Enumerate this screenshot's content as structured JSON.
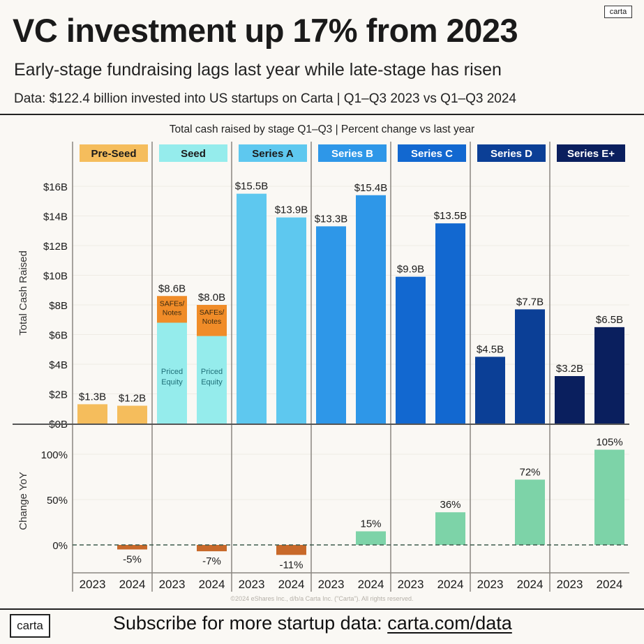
{
  "header": {
    "title": "VC investment up 17% from 2023",
    "subtitle": "Early-stage fundraising lags last year while late-stage has risen",
    "data_note": "Data: $122.4 billion invested into US startups on Carta | Q1–Q3 2023 vs Q1–Q3 2024",
    "corner_logo": "carta"
  },
  "footer": {
    "copyright": "©2024 eShares Inc., d/b/a Carta Inc. (\"Carta\"). All rights reserved.",
    "logo": "carta",
    "cta_text": "Subscribe for more startup data: ",
    "cta_link": "carta.com/data"
  },
  "chart_data": {
    "type": "bar",
    "title": "Total cash raised by stage Q1–Q3 | Percent change vs last year",
    "categories": [
      "Pre-Seed",
      "Seed",
      "Series A",
      "Series B",
      "Series C",
      "Series D",
      "Series E+"
    ],
    "years": [
      "2023",
      "2024"
    ],
    "stage_colors": [
      "#f5bd5c",
      "#95ecec",
      "#5ec8ef",
      "#2e97e8",
      "#1268d0",
      "#0b3f96",
      "#0a1f5e"
    ],
    "stage_label_text_colors": [
      "#1a1a1a",
      "#1a1a1a",
      "#1a1a1a",
      "#ffffff",
      "#ffffff",
      "#ffffff",
      "#ffffff"
    ],
    "panels": [
      {
        "name": "cash_raised",
        "ylabel": "Total Cash Raised",
        "unit": "$B",
        "ylim": [
          0,
          16
        ],
        "yticks": [
          0,
          2,
          4,
          6,
          8,
          10,
          12,
          14,
          16
        ],
        "ytick_labels": [
          "$0B",
          "$2B",
          "$4B",
          "$6B",
          "$8B",
          "$10B",
          "$12B",
          "$14B",
          "$16B"
        ],
        "grid": true,
        "series": [
          {
            "name": "2023",
            "values": [
              1.3,
              8.6,
              15.5,
              13.3,
              9.9,
              4.5,
              3.2
            ],
            "labels": [
              "$1.3B",
              "$8.6B",
              "$15.5B",
              "$13.3B",
              "$9.9B",
              "$4.5B",
              "$3.2B"
            ]
          },
          {
            "name": "2024",
            "values": [
              1.2,
              8.0,
              13.9,
              15.4,
              13.5,
              7.7,
              6.5
            ],
            "labels": [
              "$1.2B",
              "$8.0B",
              "$13.9B",
              "$15.4B",
              "$13.5B",
              "$7.7B",
              "$6.5B"
            ]
          }
        ],
        "seed_breakdown": {
          "2023": {
            "priced_equity": 6.8,
            "safes_notes": 1.8
          },
          "2024": {
            "priced_equity": 5.9,
            "safes_notes": 2.1
          },
          "priced_equity_label": "Priced Equity",
          "safes_label": "SAFEs/ Notes",
          "safes_color": "#f08c28",
          "inner_text_color": "#1f6f78"
        }
      },
      {
        "name": "change_yoy",
        "ylabel": "Change YoY",
        "unit": "%",
        "ylim": [
          -15,
          115
        ],
        "yticks": [
          0,
          50,
          100
        ],
        "ytick_labels": [
          "0%",
          "50%",
          "100%"
        ],
        "grid": true,
        "series": [
          {
            "name": "2024 vs 2023",
            "values": [
              -5,
              -7,
              -11,
              15,
              36,
              72,
              105
            ],
            "labels": [
              "-5%",
              "-7%",
              "-11%",
              "15%",
              "36%",
              "72%",
              "105%"
            ]
          }
        ],
        "positive_color": "#7dd3a8",
        "negative_color": "#c8692a"
      }
    ]
  }
}
